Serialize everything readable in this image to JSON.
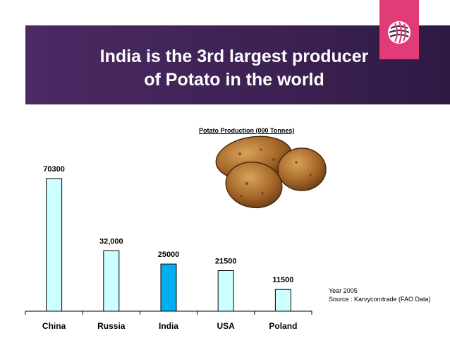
{
  "slide": {
    "title_line1": "India is the 3rd largest producer",
    "title_line2": "of Potato in the world",
    "logo_icon": "globe-icon",
    "accent_color": "#e23c78",
    "band_color": "#3c2152"
  },
  "chart_data": {
    "type": "bar",
    "title": "Potato Production (000 Tonnes)",
    "categories": [
      "China",
      "Russia",
      "India",
      "USA",
      "Poland"
    ],
    "values": [
      70300,
      32000,
      25000,
      21500,
      11500
    ],
    "data_labels": [
      "70300",
      "32,000",
      "25000",
      "21500",
      "11500"
    ],
    "highlight": "India",
    "bar_color": "#ccffff",
    "highlight_color": "#00b0f0",
    "grid": false,
    "legend": "none"
  },
  "notes": {
    "year": "Year 2005",
    "source": "Source : Karvycomtrade (FAO Data)"
  }
}
